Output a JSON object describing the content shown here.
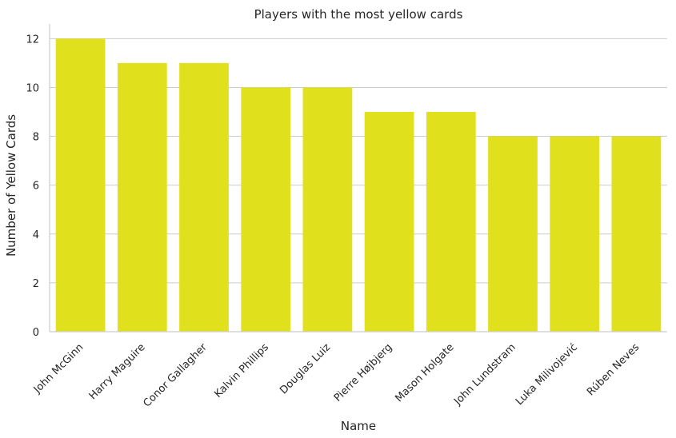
{
  "chart_data": {
    "type": "bar",
    "title": "Players with the most yellow cards",
    "xlabel": "Name",
    "ylabel": "Number of Yellow Cards",
    "categories": [
      "John McGinn",
      "Harry Maguire",
      "Conor Gallagher",
      "Kalvin Phillips",
      "Douglas Luiz",
      "Pierre Højbjerg",
      "Mason Holgate",
      "John Lundstram",
      "Luka Milivojević",
      "Rúben Neves"
    ],
    "values": [
      12,
      11,
      11,
      10,
      10,
      9,
      9,
      8,
      8,
      8
    ],
    "ylim": [
      0,
      12.6
    ],
    "yticks": [
      0,
      2,
      4,
      6,
      8,
      10,
      12
    ],
    "grid": true,
    "bar_color": "#e1e01d",
    "grid_color": "#cccccc",
    "axes_edge_color": "#cccccc"
  }
}
